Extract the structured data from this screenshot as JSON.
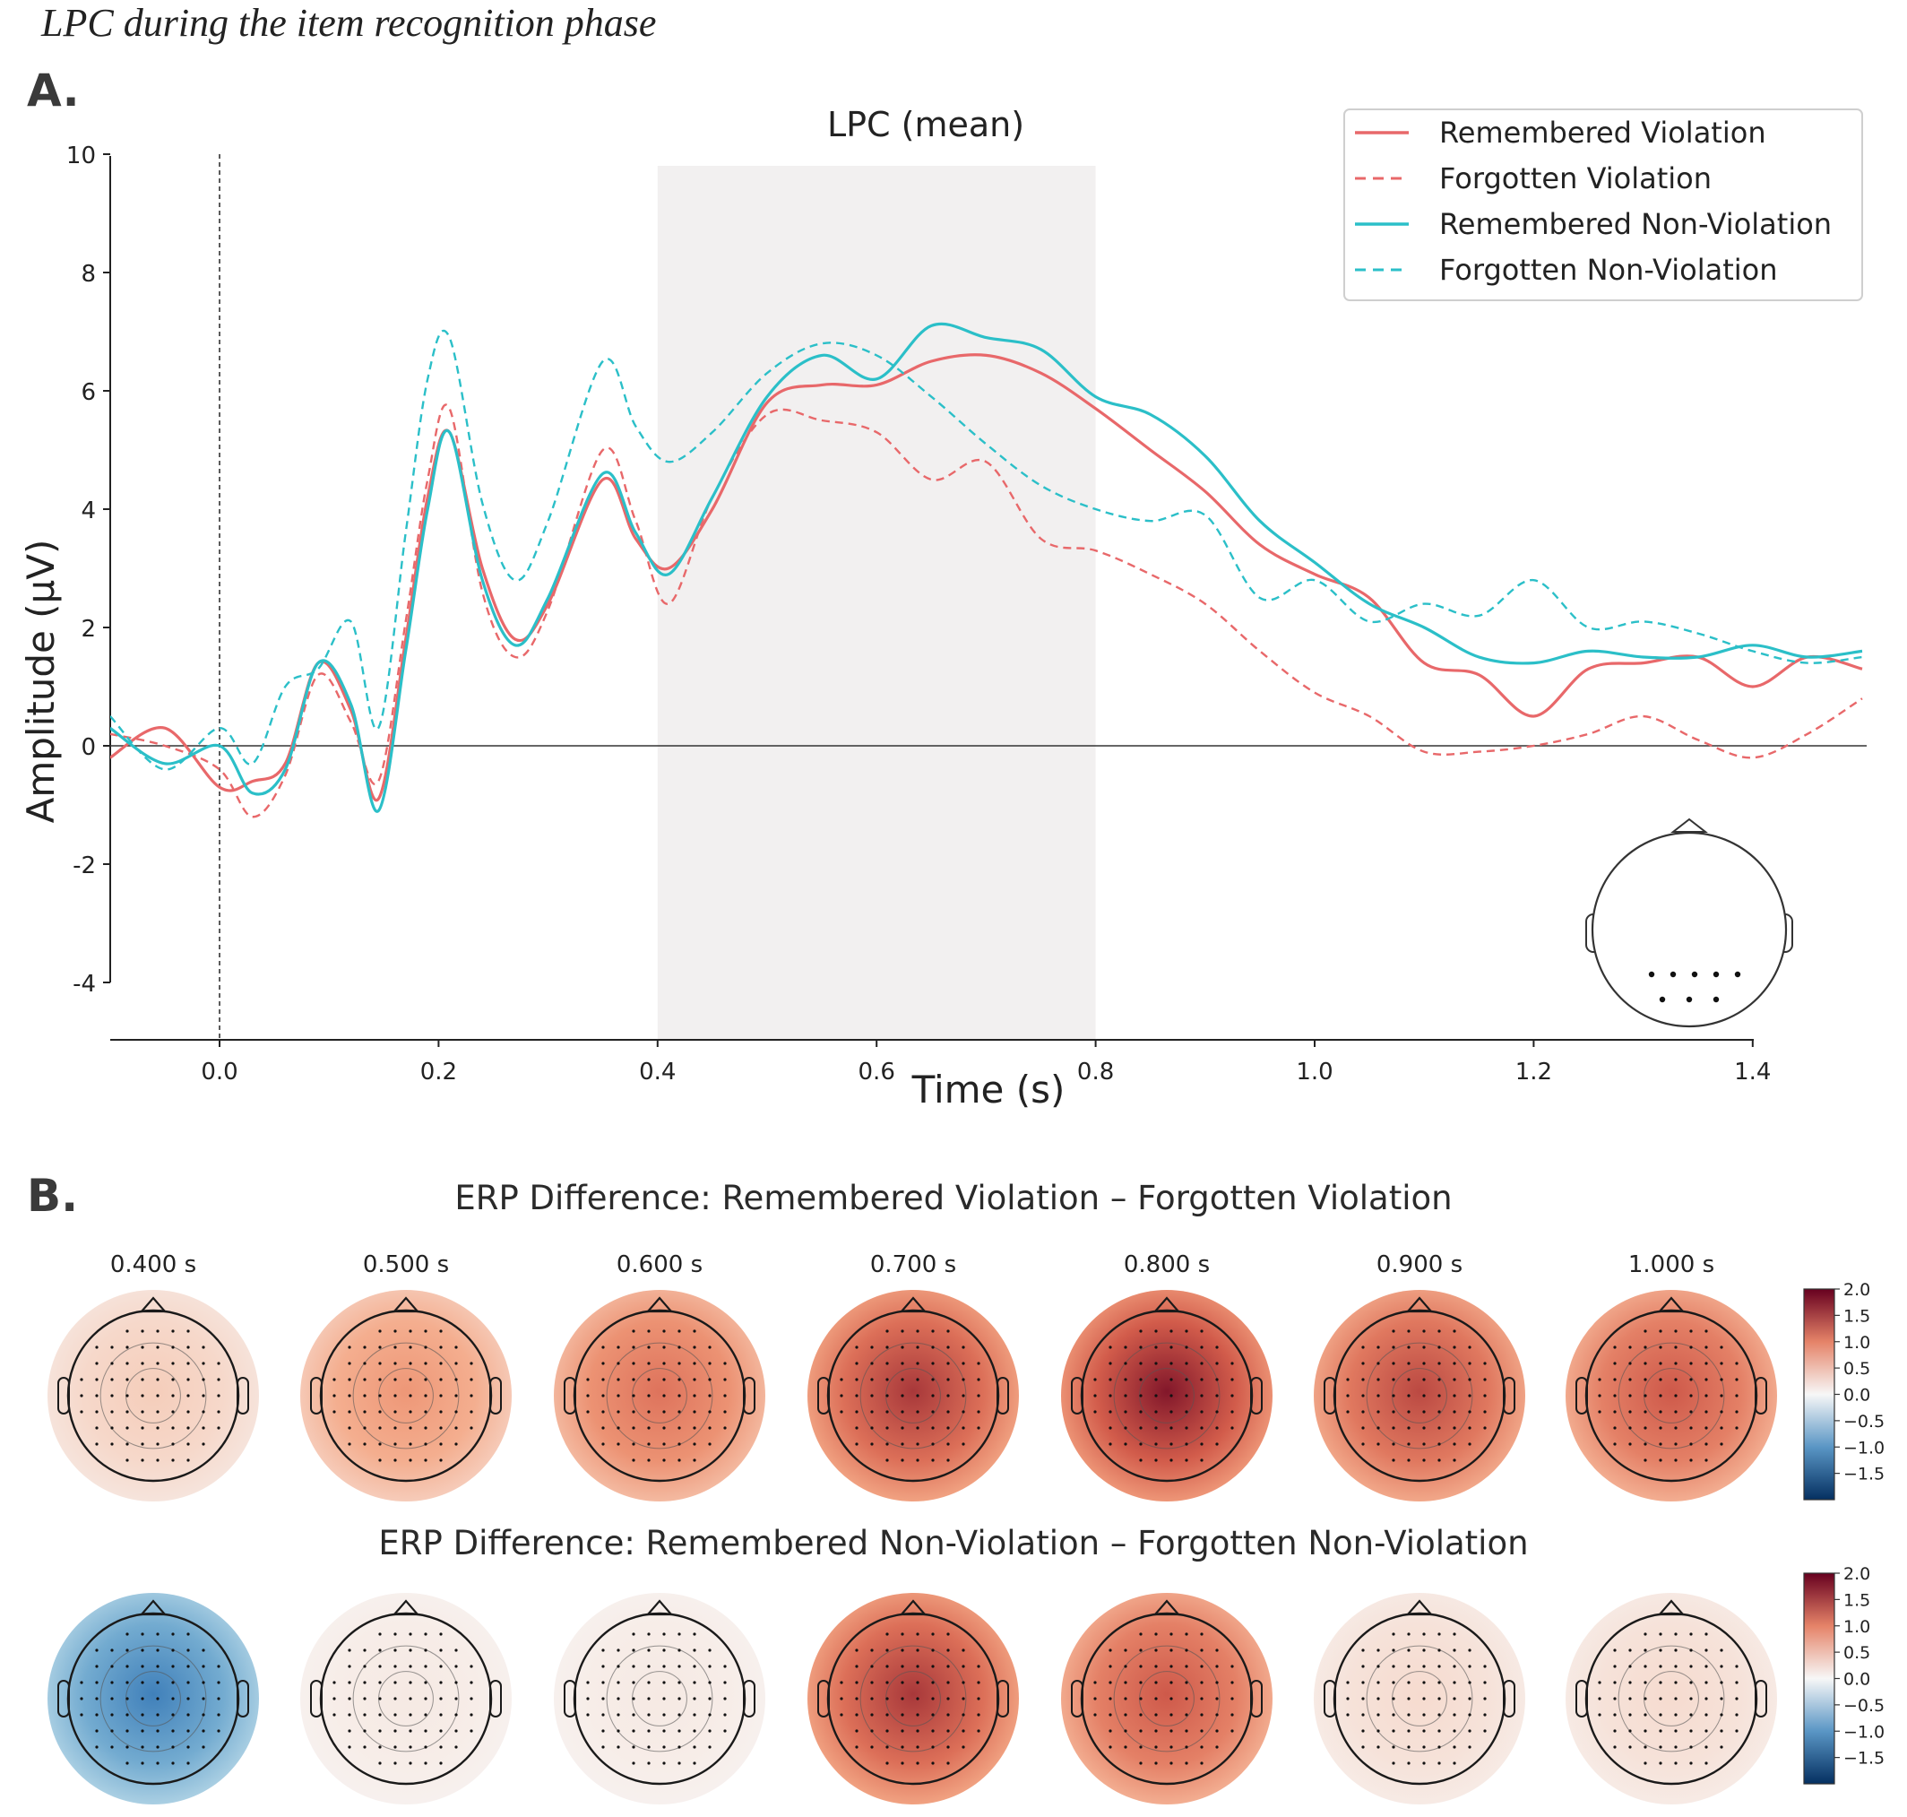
{
  "caption": "LPC during the item recognition phase",
  "panel_a": {
    "label": "A."
  },
  "panel_b": {
    "label": "B.",
    "rows": [
      {
        "title": "ERP Difference: Remembered Violation – Forgotten Violation",
        "times": [
          "0.400 s",
          "0.500 s",
          "0.600 s",
          "0.700 s",
          "0.800 s",
          "0.900 s",
          "1.000 s"
        ],
        "mean_levels": [
          0.3,
          0.7,
          1.0,
          1.4,
          1.6,
          1.3,
          1.2
        ]
      },
      {
        "title": "ERP Difference: Remembered Non-Violation – Forgotten Non-Violation",
        "times": [],
        "mean_levels": [
          -1.0,
          0.1,
          0.1,
          1.4,
          1.2,
          0.2,
          0.2
        ]
      }
    ],
    "colorbar": {
      "range": [
        -2.0,
        2.0
      ],
      "ticks": [
        "2.0",
        "1.5",
        "1.0",
        "0.5",
        "0.0",
        "−0.5",
        "−1.0",
        "−1.5"
      ]
    }
  },
  "chart_data": {
    "type": "line",
    "title": "LPC (mean)",
    "xlabel": "Time (s)",
    "ylabel": "Amplitude (μV)",
    "xlim": [
      -0.1,
      1.5
    ],
    "ylim": [
      -5,
      10
    ],
    "xticks": [
      "0.0",
      "0.2",
      "0.4",
      "0.6",
      "0.8",
      "1.0",
      "1.2",
      "1.4"
    ],
    "yticks": [
      "10",
      "8",
      "6",
      "4",
      "2",
      "0",
      "-2",
      "-4"
    ],
    "shaded_window": [
      0.4,
      0.8
    ],
    "stimulus_onset": 0.0,
    "grid": false,
    "legend_position": "top-right",
    "colors": {
      "violation": "#e8686a",
      "non_violation": "#2bbfc8",
      "shade": "#f2f0f0"
    },
    "x": [
      -0.1,
      -0.05,
      0.0,
      0.03,
      0.06,
      0.09,
      0.12,
      0.145,
      0.17,
      0.19,
      0.21,
      0.24,
      0.27,
      0.3,
      0.35,
      0.38,
      0.41,
      0.45,
      0.5,
      0.55,
      0.6,
      0.65,
      0.7,
      0.75,
      0.8,
      0.85,
      0.9,
      0.95,
      1.0,
      1.05,
      1.1,
      1.15,
      1.2,
      1.25,
      1.3,
      1.35,
      1.4,
      1.45,
      1.5
    ],
    "series": [
      {
        "name": "Remembered Violation",
        "style": "solid",
        "color": "#e8686a",
        "values": [
          -0.2,
          0.3,
          -0.7,
          -0.6,
          -0.3,
          1.4,
          0.6,
          -0.9,
          1.8,
          4.2,
          5.3,
          3.0,
          1.8,
          2.4,
          4.5,
          3.5,
          3.0,
          4.0,
          5.8,
          6.1,
          6.1,
          6.5,
          6.6,
          6.3,
          5.7,
          5.0,
          4.3,
          3.4,
          2.9,
          2.5,
          1.4,
          1.2,
          0.5,
          1.3,
          1.4,
          1.5,
          1.0,
          1.5,
          1.3
        ]
      },
      {
        "name": "Forgotten Violation",
        "style": "dashed",
        "color": "#e8686a",
        "values": [
          0.2,
          0.0,
          -0.4,
          -1.2,
          -0.5,
          1.2,
          0.4,
          -0.6,
          2.1,
          4.5,
          5.7,
          2.6,
          1.5,
          2.3,
          5.0,
          3.8,
          2.4,
          4.2,
          5.6,
          5.5,
          5.3,
          4.5,
          4.8,
          3.5,
          3.3,
          2.9,
          2.4,
          1.6,
          0.9,
          0.5,
          -0.1,
          -0.1,
          0.0,
          0.2,
          0.5,
          0.1,
          -0.2,
          0.2,
          0.8
        ]
      },
      {
        "name": "Remembered Non-Violation",
        "style": "solid",
        "color": "#2bbfc8",
        "values": [
          0.3,
          -0.3,
          0.0,
          -0.8,
          -0.4,
          1.4,
          0.7,
          -1.1,
          1.6,
          4.0,
          5.3,
          2.8,
          1.7,
          2.5,
          4.6,
          3.6,
          2.9,
          4.2,
          5.9,
          6.6,
          6.2,
          7.1,
          6.9,
          6.7,
          5.9,
          5.6,
          4.9,
          3.8,
          3.1,
          2.4,
          2.0,
          1.5,
          1.4,
          1.6,
          1.5,
          1.5,
          1.7,
          1.5,
          1.6
        ]
      },
      {
        "name": "Forgotten Non-Violation",
        "style": "dashed",
        "color": "#2bbfc8",
        "values": [
          0.5,
          -0.4,
          0.3,
          -0.3,
          1.0,
          1.3,
          2.1,
          0.3,
          3.6,
          6.2,
          6.9,
          4.1,
          2.8,
          3.8,
          6.5,
          5.4,
          4.8,
          5.3,
          6.3,
          6.8,
          6.6,
          5.9,
          5.1,
          4.4,
          4.0,
          3.8,
          3.9,
          2.5,
          2.8,
          2.1,
          2.4,
          2.2,
          2.8,
          2.0,
          2.1,
          1.9,
          1.6,
          1.4,
          1.5
        ]
      }
    ]
  }
}
